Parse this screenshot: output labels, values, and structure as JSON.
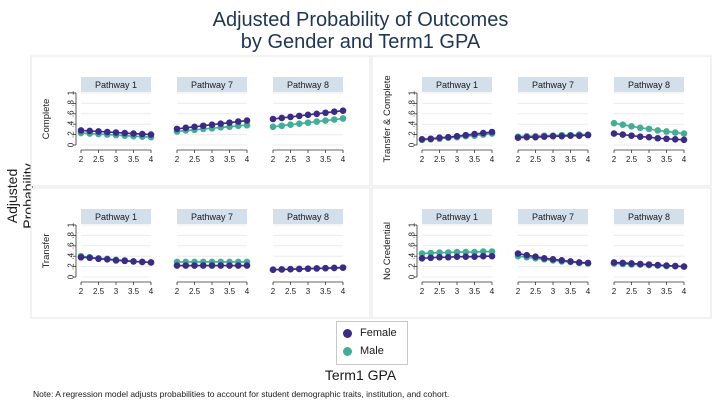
{
  "title_line1": "Adjusted Probability of Outcomes",
  "title_line2": "by Gender and Term1 GPA",
  "ylabel": "Adjusted Probability",
  "xlabel": "Term1 GPA",
  "note": "Note: A regression model adjusts probabilities to account for student demographic traits, institution, and cohort.",
  "legend": [
    {
      "label": "Female",
      "color": "#3b2a86"
    },
    {
      "label": "Male",
      "color": "#43ad96"
    }
  ],
  "colors": {
    "female": "#3b2a86",
    "male": "#43ad96",
    "strip": "#d3e0ec",
    "title": "#1f3554"
  },
  "chart_data": {
    "type": "scatter",
    "x": [
      2,
      2.25,
      2.5,
      2.75,
      3,
      3.25,
      3.5,
      3.75,
      4
    ],
    "xticks": [
      "2",
      "2.5",
      "3",
      "3.5",
      "4"
    ],
    "xtick_values": [
      2,
      2.5,
      3,
      3.5,
      4
    ],
    "yticks": [
      "0",
      ".2",
      ".4",
      ".6",
      ".8",
      "1"
    ],
    "ytick_values": [
      0,
      0.2,
      0.4,
      0.6,
      0.8,
      1
    ],
    "xlim": [
      2,
      4
    ],
    "ylim": [
      0,
      1
    ],
    "grid": true,
    "legend_position": "bottom",
    "panels": [
      {
        "outcome": "Complete",
        "facets": [
          {
            "strip": "Pathway 1",
            "series": [
              {
                "name": "Female",
                "values": [
                  0.28,
                  0.27,
                  0.26,
                  0.25,
                  0.24,
                  0.23,
                  0.22,
                  0.21,
                  0.2
                ]
              },
              {
                "name": "Male",
                "values": [
                  0.23,
                  0.22,
                  0.21,
                  0.2,
                  0.19,
                  0.18,
                  0.17,
                  0.16,
                  0.15
                ]
              }
            ]
          },
          {
            "strip": "Pathway 7",
            "series": [
              {
                "name": "Female",
                "values": [
                  0.31,
                  0.33,
                  0.35,
                  0.37,
                  0.39,
                  0.41,
                  0.43,
                  0.45,
                  0.47
                ]
              },
              {
                "name": "Male",
                "values": [
                  0.26,
                  0.28,
                  0.29,
                  0.31,
                  0.32,
                  0.34,
                  0.35,
                  0.37,
                  0.38
                ]
              }
            ]
          },
          {
            "strip": "Pathway 8",
            "series": [
              {
                "name": "Female",
                "values": [
                  0.5,
                  0.52,
                  0.54,
                  0.56,
                  0.58,
                  0.6,
                  0.62,
                  0.64,
                  0.66
                ]
              },
              {
                "name": "Male",
                "values": [
                  0.35,
                  0.37,
                  0.39,
                  0.41,
                  0.43,
                  0.45,
                  0.47,
                  0.49,
                  0.51
                ]
              }
            ]
          }
        ]
      },
      {
        "outcome": "Transfer & Complete",
        "facets": [
          {
            "strip": "Pathway 1",
            "series": [
              {
                "name": "Female",
                "values": [
                  0.11,
                  0.12,
                  0.14,
                  0.15,
                  0.17,
                  0.19,
                  0.21,
                  0.23,
                  0.25
                ]
              },
              {
                "name": "Male",
                "values": [
                  0.1,
                  0.11,
                  0.12,
                  0.14,
                  0.15,
                  0.17,
                  0.18,
                  0.2,
                  0.22
                ]
              }
            ]
          },
          {
            "strip": "Pathway 7",
            "series": [
              {
                "name": "Female",
                "values": [
                  0.14,
                  0.15,
                  0.15,
                  0.16,
                  0.17,
                  0.17,
                  0.18,
                  0.18,
                  0.19
                ]
              },
              {
                "name": "Male",
                "values": [
                  0.16,
                  0.17,
                  0.17,
                  0.18,
                  0.18,
                  0.19,
                  0.19,
                  0.2,
                  0.2
                ]
              }
            ]
          },
          {
            "strip": "Pathway 8",
            "series": [
              {
                "name": "Female",
                "values": [
                  0.22,
                  0.2,
                  0.18,
                  0.16,
                  0.15,
                  0.13,
                  0.12,
                  0.11,
                  0.1
                ]
              },
              {
                "name": "Male",
                "values": [
                  0.42,
                  0.39,
                  0.36,
                  0.33,
                  0.31,
                  0.28,
                  0.26,
                  0.24,
                  0.22
                ]
              }
            ]
          }
        ]
      },
      {
        "outcome": "Transfer",
        "facets": [
          {
            "strip": "Pathway 1",
            "series": [
              {
                "name": "Female",
                "values": [
                  0.38,
                  0.37,
                  0.35,
                  0.34,
                  0.32,
                  0.31,
                  0.3,
                  0.29,
                  0.28
                ]
              },
              {
                "name": "Male",
                "values": [
                  0.4,
                  0.38,
                  0.36,
                  0.35,
                  0.33,
                  0.32,
                  0.3,
                  0.29,
                  0.28
                ]
              }
            ]
          },
          {
            "strip": "Pathway 7",
            "series": [
              {
                "name": "Female",
                "values": [
                  0.22,
                  0.22,
                  0.22,
                  0.22,
                  0.22,
                  0.22,
                  0.22,
                  0.22,
                  0.22
                ]
              },
              {
                "name": "Male",
                "values": [
                  0.29,
                  0.29,
                  0.29,
                  0.29,
                  0.29,
                  0.29,
                  0.29,
                  0.29,
                  0.29
                ]
              }
            ]
          },
          {
            "strip": "Pathway 8",
            "series": [
              {
                "name": "Female",
                "values": [
                  0.14,
                  0.145,
                  0.15,
                  0.155,
                  0.16,
                  0.165,
                  0.17,
                  0.175,
                  0.18
                ]
              },
              {
                "name": "Male",
                "values": [
                  0.14,
                  0.145,
                  0.15,
                  0.155,
                  0.16,
                  0.165,
                  0.17,
                  0.175,
                  0.18
                ]
              }
            ]
          }
        ]
      },
      {
        "outcome": "No Credential",
        "facets": [
          {
            "strip": "Pathway 1",
            "series": [
              {
                "name": "Female",
                "values": [
                  0.36,
                  0.37,
                  0.38,
                  0.38,
                  0.39,
                  0.39,
                  0.39,
                  0.4,
                  0.4
                ]
              },
              {
                "name": "Male",
                "values": [
                  0.45,
                  0.46,
                  0.47,
                  0.47,
                  0.48,
                  0.48,
                  0.48,
                  0.49,
                  0.49
                ]
              }
            ]
          },
          {
            "strip": "Pathway 7",
            "series": [
              {
                "name": "Female",
                "values": [
                  0.45,
                  0.42,
                  0.39,
                  0.36,
                  0.34,
                  0.32,
                  0.3,
                  0.28,
                  0.27
                ]
              },
              {
                "name": "Male",
                "values": [
                  0.4,
                  0.38,
                  0.36,
                  0.34,
                  0.32,
                  0.3,
                  0.29,
                  0.27,
                  0.26
                ]
              }
            ]
          },
          {
            "strip": "Pathway 8",
            "series": [
              {
                "name": "Female",
                "values": [
                  0.28,
                  0.27,
                  0.26,
                  0.25,
                  0.24,
                  0.23,
                  0.22,
                  0.21,
                  0.2
                ]
              },
              {
                "name": "Male",
                "values": [
                  0.26,
                  0.25,
                  0.24,
                  0.24,
                  0.23,
                  0.22,
                  0.21,
                  0.21,
                  0.2
                ]
              }
            ]
          }
        ]
      }
    ]
  }
}
